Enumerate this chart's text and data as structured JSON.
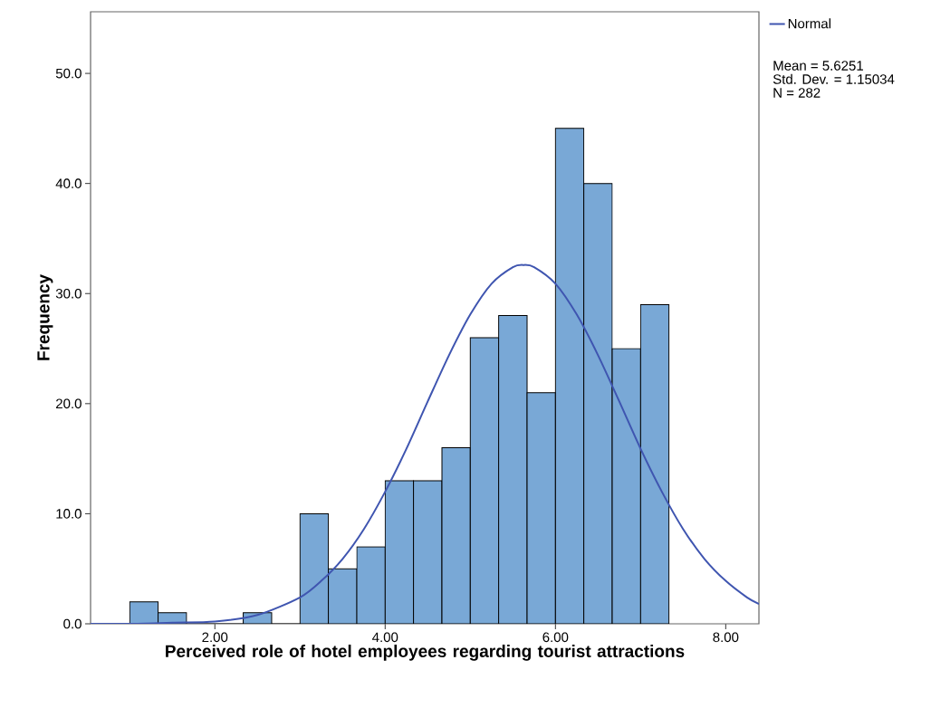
{
  "chart_data": {
    "type": "histogram",
    "xlabel": "Perceived role of hotel employees regarding tourist attractions",
    "ylabel": "Frequency",
    "series": [
      {
        "color": "#79a8d6",
        "bins": [
          1,
          1.333,
          1.667,
          2,
          2.333,
          2.667,
          3,
          3.333,
          3.667,
          4,
          4.333,
          4.667,
          5,
          5.333,
          5.667,
          6,
          6.333,
          6.667,
          7,
          7.333
        ],
        "values": [
          2,
          1,
          0,
          0,
          1,
          0,
          10,
          5,
          7,
          13,
          13,
          16,
          26,
          28,
          21,
          45,
          40,
          25,
          29
        ]
      },
      {
        "type": "line",
        "name": "Normal",
        "color": "#3f55b0",
        "x": [
          0.54,
          1.0,
          1.5,
          2.0,
          2.5,
          3.0,
          3.25,
          3.5,
          3.75,
          4.0,
          4.25,
          4.5,
          4.75,
          5.0,
          5.25,
          5.5,
          5.625,
          5.75,
          6.0,
          6.25,
          6.5,
          6.75,
          7.0,
          7.25,
          7.5,
          7.75,
          8.0,
          8.25,
          8.39
        ],
        "values": [
          0.0,
          0.0,
          0.1,
          0.2,
          0.8,
          2.4,
          3.9,
          5.9,
          8.6,
          12.0,
          15.9,
          20.2,
          24.4,
          28.1,
          30.9,
          32.4,
          32.6,
          32.4,
          30.9,
          28.1,
          24.4,
          20.2,
          15.9,
          12.0,
          8.6,
          5.9,
          3.9,
          2.4,
          1.8
        ]
      }
    ],
    "xlim": [
      0.54,
      8.39
    ],
    "ylim": [
      0,
      55.6
    ],
    "xticks": [
      {
        "value": 2,
        "label": "2.00"
      },
      {
        "value": 4,
        "label": "4.00"
      },
      {
        "value": 6,
        "label": "6.00"
      },
      {
        "value": 8,
        "label": "8.00"
      }
    ],
    "yticks": [
      {
        "value": 0,
        "label": "0.0"
      },
      {
        "value": 10,
        "label": "10.0"
      },
      {
        "value": 20,
        "label": "20.0"
      },
      {
        "value": 30,
        "label": "30.0"
      },
      {
        "value": 40,
        "label": "40.0"
      },
      {
        "value": 50,
        "label": "50.0"
      }
    ],
    "legend": "top right",
    "annotations": [
      "Mean = 5.6251",
      "Std. Dev. = 1.15034",
      "N = 282"
    ]
  }
}
